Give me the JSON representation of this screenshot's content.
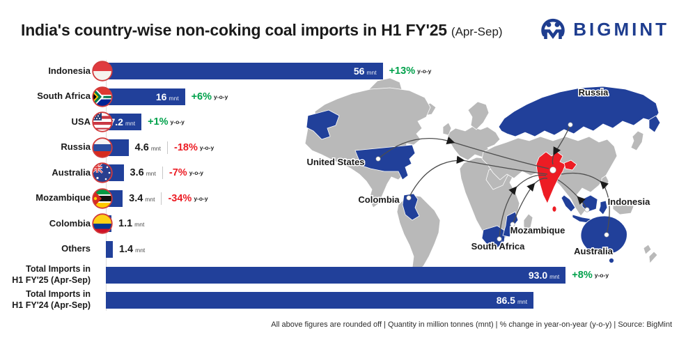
{
  "header": {
    "title_main": "India's country-wise non-coking coal imports in H1 FY'25",
    "title_suffix": "(Apr-Sep)",
    "brand": "BIGMINT"
  },
  "footer": {
    "note": "All above figures are rounded off  |  Quantity in million tonnes (mnt)  |  % change in year-on-year (y-o-y)  |  Source: BigMint"
  },
  "colors": {
    "bar_blue": "#21409a",
    "map_gray": "#b9b9b9",
    "map_highlight_blue": "#21409a",
    "india_red": "#ed1c24",
    "positive_green": "#00a14b",
    "negative_red": "#ec1c24",
    "brand_navy": "#1e3d8f",
    "flag_ring": "#d23b3b"
  },
  "chart_data": {
    "type": "bar",
    "orientation": "horizontal",
    "title": "India's country-wise non-coking coal imports in H1 FY'25 (Apr-Sep)",
    "unit": "mnt",
    "xlim": [
      0,
      100
    ],
    "grid": false,
    "categories": [
      "Indonesia",
      "South Africa",
      "USA",
      "Russia",
      "Australia",
      "Mozambique",
      "Colombia",
      "Others",
      "Total Imports in H1 FY'25 (Apr-Sep)",
      "Total Imports in H1 FY'24 (Apr-Sep)"
    ],
    "values": [
      56,
      16,
      7.2,
      4.6,
      3.6,
      3.4,
      1.1,
      1.4,
      93.0,
      86.5
    ],
    "yoy_change_pct": [
      13,
      6,
      1,
      -18,
      -7,
      -34,
      null,
      null,
      8,
      null
    ],
    "rows": [
      {
        "label_lines": [
          "Indonesia"
        ],
        "flag": "indonesia",
        "mnt": 56,
        "value_label": "56",
        "unit": "mnt",
        "value_inside": true,
        "pct": "+13%",
        "trend": "up",
        "yoy": "y-o-y",
        "divider": false
      },
      {
        "label_lines": [
          "South Africa"
        ],
        "flag": "south_africa",
        "mnt": 16,
        "value_label": "16",
        "unit": "mnt",
        "value_inside": true,
        "pct": "+6%",
        "trend": "up",
        "yoy": "y-o-y",
        "divider": false
      },
      {
        "label_lines": [
          "USA"
        ],
        "flag": "usa",
        "mnt": 7.2,
        "value_label": "7.2",
        "unit": "mnt",
        "value_inside": true,
        "pct": "+1%",
        "trend": "up",
        "yoy": "y-o-y",
        "divider": false
      },
      {
        "label_lines": [
          "Russia"
        ],
        "flag": "russia",
        "mnt": 4.6,
        "value_label": "4.6",
        "unit": "mnt",
        "value_inside": false,
        "pct": "-18%",
        "trend": "down",
        "yoy": "y-o-y",
        "divider": true
      },
      {
        "label_lines": [
          "Australia"
        ],
        "flag": "australia",
        "mnt": 3.6,
        "value_label": "3.6",
        "unit": "mnt",
        "value_inside": false,
        "pct": "-7%",
        "trend": "down",
        "yoy": "y-o-y",
        "divider": true
      },
      {
        "label_lines": [
          "Mozambique"
        ],
        "flag": "mozambique",
        "mnt": 3.4,
        "value_label": "3.4",
        "unit": "mnt",
        "value_inside": false,
        "pct": "-34%",
        "trend": "down",
        "yoy": "y-o-y",
        "divider": true
      },
      {
        "label_lines": [
          "Colombia"
        ],
        "flag": "colombia",
        "mnt": 1.1,
        "value_label": "1.1",
        "unit": "mnt",
        "value_inside": false,
        "pct": null,
        "trend": null,
        "yoy": null,
        "divider": false
      },
      {
        "label_lines": [
          "Others"
        ],
        "flag": null,
        "mnt": 1.4,
        "value_label": "1.4",
        "unit": "mnt",
        "value_inside": false,
        "pct": null,
        "trend": null,
        "yoy": null,
        "divider": false
      },
      {
        "label_lines": [
          "Total Imports in",
          "H1 FY'25 (Apr-Sep)"
        ],
        "flag": null,
        "mnt": 93.0,
        "value_label": "93.0",
        "unit": "mnt",
        "value_inside": true,
        "pct": "+8%",
        "trend": "up",
        "yoy": "y-o-y",
        "divider": false
      },
      {
        "label_lines": [
          "Total Imports in",
          "H1 FY'24 (Apr-Sep)"
        ],
        "flag": null,
        "mnt": 86.5,
        "value_label": "86.5",
        "unit": "mnt",
        "value_inside": true,
        "pct": null,
        "trend": null,
        "yoy": null,
        "divider": false
      }
    ]
  },
  "map": {
    "destination": "India",
    "labels": {
      "united_states": "United States",
      "colombia": "Colombia",
      "russia": "Russia",
      "indonesia": "Indonesia",
      "mozambique": "Mozambique",
      "south_africa": "South Africa",
      "australia": "Australia"
    }
  }
}
